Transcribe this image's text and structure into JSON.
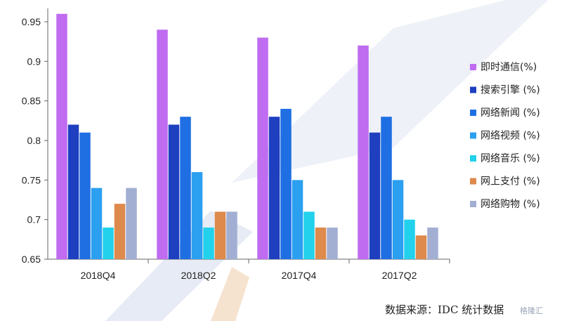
{
  "chart_data": {
    "type": "bar",
    "categories": [
      "2018Q4",
      "2018Q2",
      "2017Q4",
      "2017Q2"
    ],
    "series": [
      {
        "name": "即时通信(%)",
        "color": "#bf6cf0",
        "values": [
          0.96,
          0.94,
          0.93,
          0.92
        ]
      },
      {
        "name": "搜索引擎 (%)",
        "color": "#1e3fbf",
        "values": [
          0.82,
          0.82,
          0.83,
          0.81
        ]
      },
      {
        "name": "网络新闻 (%)",
        "color": "#1f6fe3",
        "values": [
          0.81,
          0.83,
          0.84,
          0.83
        ]
      },
      {
        "name": "网络视频 (%)",
        "color": "#2b9ff0",
        "values": [
          0.74,
          0.76,
          0.75,
          0.75
        ]
      },
      {
        "name": "网络音乐 (%)",
        "color": "#22d1ec",
        "values": [
          0.69,
          0.69,
          0.71,
          0.7
        ]
      },
      {
        "name": "网上支付 (%)",
        "color": "#dd8a4c",
        "values": [
          0.72,
          0.71,
          0.69,
          0.68
        ]
      },
      {
        "name": "网络购物 (%)",
        "color": "#a2afd3",
        "values": [
          0.74,
          0.71,
          0.69,
          0.69
        ]
      }
    ],
    "yticks": [
      "0.65",
      "0.7",
      "0.75",
      "0.8",
      "0.85",
      "0.9",
      "0.95"
    ],
    "ylim": [
      0.65,
      0.97
    ],
    "grid": false,
    "legend_position": "right",
    "source_note": "数据来源：IDC 统计数据",
    "watermark": "格隆汇"
  }
}
